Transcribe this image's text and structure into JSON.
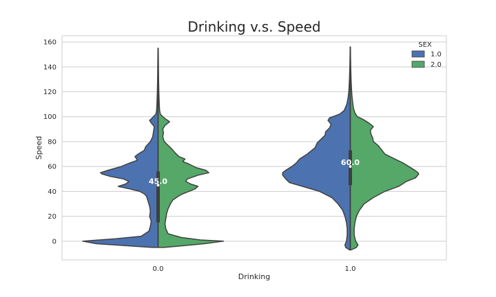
{
  "chart_data": {
    "type": "violin",
    "title": "Drinking v.s. Speed",
    "xlabel": "Drinking",
    "ylabel": "Speed",
    "categories": [
      "0.0",
      "1.0"
    ],
    "ylim": [
      -15,
      165
    ],
    "yticks": [
      0,
      20,
      40,
      60,
      80,
      100,
      120,
      140,
      160
    ],
    "grid": true,
    "legend": {
      "title": "SEX",
      "position": "top-right"
    },
    "series": [
      {
        "name": "1.0",
        "color": "#4c72b0"
      },
      {
        "name": "2.0",
        "color": "#55a868"
      }
    ],
    "violins": [
      {
        "category": "0.0",
        "median_label": "45.0",
        "median": 45,
        "iqr": [
          15,
          56
        ],
        "range": [
          -5,
          155
        ],
        "left_profile": [
          [
            -5,
            0.08
          ],
          [
            -2,
            0.8
          ],
          [
            0,
            0.98
          ],
          [
            2,
            0.55
          ],
          [
            4,
            0.22
          ],
          [
            8,
            0.12
          ],
          [
            12,
            0.1
          ],
          [
            16,
            0.09
          ],
          [
            20,
            0.11
          ],
          [
            24,
            0.1
          ],
          [
            28,
            0.11
          ],
          [
            32,
            0.13
          ],
          [
            36,
            0.15
          ],
          [
            38,
            0.18
          ],
          [
            40,
            0.24
          ],
          [
            42,
            0.37
          ],
          [
            44,
            0.52
          ],
          [
            46,
            0.42
          ],
          [
            48,
            0.38
          ],
          [
            50,
            0.45
          ],
          [
            52,
            0.62
          ],
          [
            54,
            0.73
          ],
          [
            55,
            0.75
          ],
          [
            57,
            0.65
          ],
          [
            60,
            0.48
          ],
          [
            63,
            0.36
          ],
          [
            65,
            0.27
          ],
          [
            68,
            0.3
          ],
          [
            70,
            0.26
          ],
          [
            73,
            0.18
          ],
          [
            76,
            0.16
          ],
          [
            80,
            0.1
          ],
          [
            84,
            0.07
          ],
          [
            88,
            0.06
          ],
          [
            92,
            0.05
          ],
          [
            95,
            0.09
          ],
          [
            97,
            0.11
          ],
          [
            100,
            0.06
          ],
          [
            102,
            0.03
          ],
          [
            105,
            0.02
          ],
          [
            110,
            0.015
          ],
          [
            120,
            0.01
          ],
          [
            130,
            0.006
          ],
          [
            145,
            0.004
          ],
          [
            155,
            0.002
          ]
        ],
        "right_profile": [
          [
            -5,
            0.08
          ],
          [
            -2,
            0.6
          ],
          [
            0,
            0.85
          ],
          [
            1,
            0.55
          ],
          [
            3,
            0.3
          ],
          [
            6,
            0.13
          ],
          [
            10,
            0.1
          ],
          [
            14,
            0.09
          ],
          [
            18,
            0.1
          ],
          [
            22,
            0.11
          ],
          [
            26,
            0.13
          ],
          [
            30,
            0.16
          ],
          [
            33,
            0.19
          ],
          [
            36,
            0.26
          ],
          [
            38,
            0.32
          ],
          [
            40,
            0.4
          ],
          [
            42,
            0.48
          ],
          [
            44,
            0.52
          ],
          [
            46,
            0.42
          ],
          [
            48,
            0.36
          ],
          [
            50,
            0.38
          ],
          [
            53,
            0.52
          ],
          [
            55,
            0.66
          ],
          [
            57,
            0.62
          ],
          [
            59,
            0.5
          ],
          [
            62,
            0.4
          ],
          [
            64,
            0.32
          ],
          [
            66,
            0.35
          ],
          [
            68,
            0.27
          ],
          [
            71,
            0.22
          ],
          [
            74,
            0.18
          ],
          [
            77,
            0.13
          ],
          [
            80,
            0.08
          ],
          [
            84,
            0.06
          ],
          [
            87,
            0.07
          ],
          [
            90,
            0.06
          ],
          [
            93,
            0.09
          ],
          [
            96,
            0.15
          ],
          [
            98,
            0.1
          ],
          [
            100,
            0.06
          ],
          [
            102,
            0.03
          ],
          [
            105,
            0.02
          ],
          [
            110,
            0.015
          ],
          [
            120,
            0.01
          ],
          [
            130,
            0.006
          ],
          [
            145,
            0.004
          ],
          [
            155,
            0.002
          ]
        ]
      },
      {
        "category": "1.0",
        "median_label": "60.0",
        "median": 60,
        "iqr": [
          45,
          73
        ],
        "range": [
          -7,
          156
        ],
        "left_profile": [
          [
            -7,
            0.01
          ],
          [
            -5,
            0.06
          ],
          [
            -3,
            0.07
          ],
          [
            0,
            0.05
          ],
          [
            5,
            0.04
          ],
          [
            10,
            0.04
          ],
          [
            15,
            0.05
          ],
          [
            20,
            0.07
          ],
          [
            25,
            0.1
          ],
          [
            30,
            0.16
          ],
          [
            35,
            0.24
          ],
          [
            40,
            0.4
          ],
          [
            44,
            0.62
          ],
          [
            47,
            0.79
          ],
          [
            50,
            0.84
          ],
          [
            53,
            0.88
          ],
          [
            55,
            0.88
          ],
          [
            57,
            0.84
          ],
          [
            60,
            0.76
          ],
          [
            63,
            0.7
          ],
          [
            66,
            0.66
          ],
          [
            70,
            0.56
          ],
          [
            75,
            0.46
          ],
          [
            79,
            0.43
          ],
          [
            82,
            0.38
          ],
          [
            85,
            0.33
          ],
          [
            88,
            0.32
          ],
          [
            91,
            0.27
          ],
          [
            94,
            0.25
          ],
          [
            97,
            0.29
          ],
          [
            99,
            0.27
          ],
          [
            102,
            0.14
          ],
          [
            105,
            0.08
          ],
          [
            110,
            0.045
          ],
          [
            115,
            0.03
          ],
          [
            120,
            0.02
          ],
          [
            126,
            0.014
          ],
          [
            132,
            0.01
          ],
          [
            140,
            0.006
          ],
          [
            148,
            0.004
          ],
          [
            156,
            0.002
          ]
        ],
        "right_profile": [
          [
            -7,
            0.01
          ],
          [
            -5,
            0.08
          ],
          [
            -3,
            0.1
          ],
          [
            0,
            0.07
          ],
          [
            5,
            0.05
          ],
          [
            10,
            0.05
          ],
          [
            15,
            0.06
          ],
          [
            20,
            0.08
          ],
          [
            25,
            0.12
          ],
          [
            30,
            0.18
          ],
          [
            35,
            0.3
          ],
          [
            40,
            0.45
          ],
          [
            44,
            0.63
          ],
          [
            48,
            0.73
          ],
          [
            51,
            0.85
          ],
          [
            54,
            0.89
          ],
          [
            55,
            0.88
          ],
          [
            57,
            0.84
          ],
          [
            60,
            0.76
          ],
          [
            63,
            0.68
          ],
          [
            66,
            0.58
          ],
          [
            70,
            0.45
          ],
          [
            74,
            0.4
          ],
          [
            77,
            0.36
          ],
          [
            80,
            0.3
          ],
          [
            83,
            0.29
          ],
          [
            86,
            0.27
          ],
          [
            89,
            0.26
          ],
          [
            92,
            0.3
          ],
          [
            95,
            0.24
          ],
          [
            98,
            0.16
          ],
          [
            100,
            0.09
          ],
          [
            103,
            0.06
          ],
          [
            107,
            0.04
          ],
          [
            112,
            0.03
          ],
          [
            118,
            0.02
          ],
          [
            124,
            0.014
          ],
          [
            130,
            0.01
          ],
          [
            138,
            0.006
          ],
          [
            146,
            0.004
          ],
          [
            156,
            0.002
          ]
        ]
      }
    ]
  }
}
